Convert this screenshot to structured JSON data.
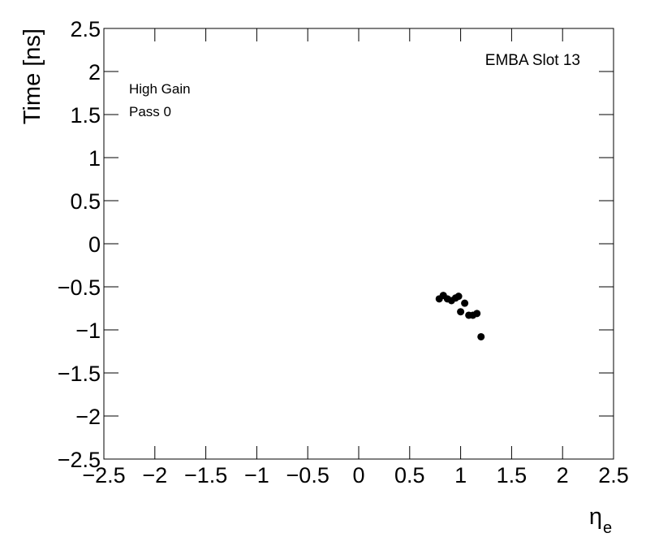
{
  "chart_data": {
    "type": "scatter",
    "x_label": {
      "symbol": "η",
      "subscript": "e"
    },
    "y_label": "Time [ns]",
    "annotations": [
      "EMBA Slot 13",
      "High Gain",
      "Pass 0"
    ],
    "x": [
      0.79,
      0.83,
      0.87,
      0.91,
      0.95,
      0.98,
      1.0,
      1.04,
      1.08,
      1.12,
      1.16,
      1.2
    ],
    "y": [
      -0.64,
      -0.6,
      -0.64,
      -0.66,
      -0.63,
      -0.61,
      -0.79,
      -0.69,
      -0.83,
      -0.83,
      -0.81,
      -1.08
    ],
    "color": "#000000",
    "xlim": [
      -2.5,
      2.5
    ],
    "ylim": [
      -2.5,
      2.5
    ],
    "xticks": [
      {
        "value": -2.5,
        "label": "−2.5"
      },
      {
        "value": -2,
        "label": "−2"
      },
      {
        "value": -1.5,
        "label": "−1.5"
      },
      {
        "value": -1,
        "label": "−1"
      },
      {
        "value": -0.5,
        "label": "−0.5"
      },
      0,
      0.5,
      1,
      1.5,
      2,
      2.5
    ],
    "yticks": [
      {
        "value": -2.5,
        "label": "−2.5"
      },
      {
        "value": -2,
        "label": "−2"
      },
      {
        "value": -1.5,
        "label": "−1.5"
      },
      {
        "value": -1,
        "label": "−1"
      },
      {
        "value": -0.5,
        "label": "−0.5"
      },
      0,
      0.5,
      1,
      1.5,
      2,
      2.5
    ],
    "grid": false
  }
}
